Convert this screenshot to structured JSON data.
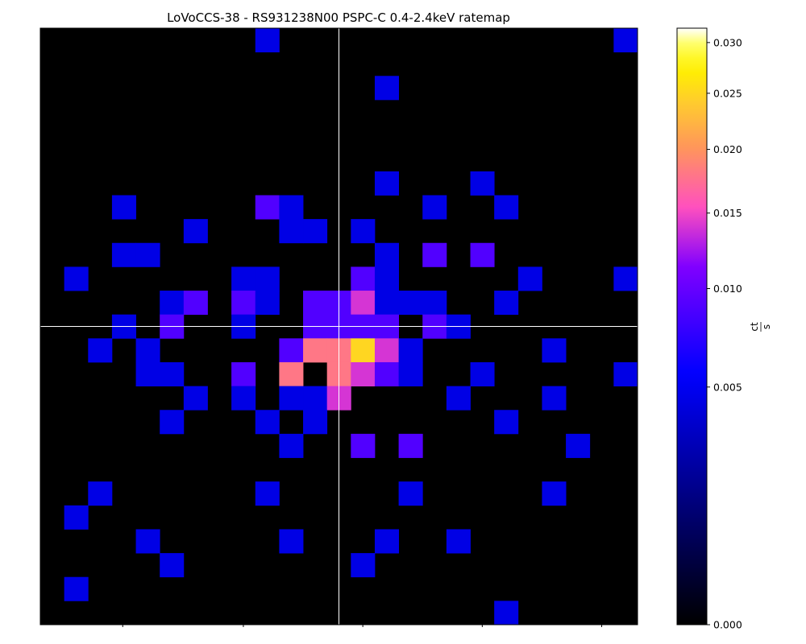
{
  "chart_data": {
    "type": "heatmap",
    "title": "LoVoCCS-38 - RS931238N00 PSPC-C 0.4-2.4keV ratemap",
    "colorbar_label": "ct/s",
    "colormap": "gnuplot2",
    "n_cols": 25,
    "n_rows": 25,
    "crosshair": {
      "col": 12.5,
      "row": 12.5,
      "color": "#ffffff"
    },
    "colorbar": {
      "scale": "power-law",
      "vmin": 0.0,
      "vmax": 0.0315,
      "ticks": [
        {
          "value": 0.0,
          "label": "0.000"
        },
        {
          "value": 0.005,
          "label": "0.005"
        },
        {
          "value": 0.01,
          "label": "0.010"
        },
        {
          "value": 0.015,
          "label": "0.015"
        },
        {
          "value": 0.02,
          "label": "0.020"
        },
        {
          "value": 0.025,
          "label": "0.025"
        },
        {
          "value": 0.03,
          "label": "0.030"
        }
      ]
    },
    "pixels": [
      {
        "col": 9,
        "row": 0,
        "value": 0.0045
      },
      {
        "col": 24,
        "row": 0,
        "value": 0.0045
      },
      {
        "col": 14,
        "row": 2,
        "value": 0.0045
      },
      {
        "col": 14,
        "row": 6,
        "value": 0.0045
      },
      {
        "col": 18,
        "row": 6,
        "value": 0.0045
      },
      {
        "col": 3,
        "row": 7,
        "value": 0.0045
      },
      {
        "col": 9,
        "row": 7,
        "value": 0.009
      },
      {
        "col": 10,
        "row": 7,
        "value": 0.0045
      },
      {
        "col": 16,
        "row": 7,
        "value": 0.0045
      },
      {
        "col": 19,
        "row": 7,
        "value": 0.0045
      },
      {
        "col": 6,
        "row": 8,
        "value": 0.0045
      },
      {
        "col": 10,
        "row": 8,
        "value": 0.0045
      },
      {
        "col": 11,
        "row": 8,
        "value": 0.0045
      },
      {
        "col": 13,
        "row": 8,
        "value": 0.0045
      },
      {
        "col": 3,
        "row": 9,
        "value": 0.0045
      },
      {
        "col": 4,
        "row": 9,
        "value": 0.0045
      },
      {
        "col": 14,
        "row": 9,
        "value": 0.0045
      },
      {
        "col": 16,
        "row": 9,
        "value": 0.009
      },
      {
        "col": 18,
        "row": 9,
        "value": 0.009
      },
      {
        "col": 1,
        "row": 10,
        "value": 0.0045
      },
      {
        "col": 8,
        "row": 10,
        "value": 0.0045
      },
      {
        "col": 9,
        "row": 10,
        "value": 0.0045
      },
      {
        "col": 13,
        "row": 10,
        "value": 0.009
      },
      {
        "col": 14,
        "row": 10,
        "value": 0.0045
      },
      {
        "col": 20,
        "row": 10,
        "value": 0.0045
      },
      {
        "col": 24,
        "row": 10,
        "value": 0.0045
      },
      {
        "col": 5,
        "row": 11,
        "value": 0.0045
      },
      {
        "col": 6,
        "row": 11,
        "value": 0.009
      },
      {
        "col": 8,
        "row": 11,
        "value": 0.009
      },
      {
        "col": 9,
        "row": 11,
        "value": 0.0045
      },
      {
        "col": 11,
        "row": 11,
        "value": 0.009
      },
      {
        "col": 12,
        "row": 11,
        "value": 0.009
      },
      {
        "col": 13,
        "row": 11,
        "value": 0.014
      },
      {
        "col": 14,
        "row": 11,
        "value": 0.0045
      },
      {
        "col": 15,
        "row": 11,
        "value": 0.0045
      },
      {
        "col": 16,
        "row": 11,
        "value": 0.0045
      },
      {
        "col": 19,
        "row": 11,
        "value": 0.0045
      },
      {
        "col": 3,
        "row": 12,
        "value": 0.0045
      },
      {
        "col": 5,
        "row": 12,
        "value": 0.009
      },
      {
        "col": 8,
        "row": 12,
        "value": 0.0045
      },
      {
        "col": 11,
        "row": 12,
        "value": 0.009
      },
      {
        "col": 12,
        "row": 12,
        "value": 0.009
      },
      {
        "col": 13,
        "row": 12,
        "value": 0.009
      },
      {
        "col": 14,
        "row": 12,
        "value": 0.009
      },
      {
        "col": 16,
        "row": 12,
        "value": 0.009
      },
      {
        "col": 17,
        "row": 12,
        "value": 0.0045
      },
      {
        "col": 2,
        "row": 13,
        "value": 0.0045
      },
      {
        "col": 4,
        "row": 13,
        "value": 0.0045
      },
      {
        "col": 10,
        "row": 13,
        "value": 0.009
      },
      {
        "col": 11,
        "row": 13,
        "value": 0.018
      },
      {
        "col": 12,
        "row": 13,
        "value": 0.018
      },
      {
        "col": 13,
        "row": 13,
        "value": 0.025
      },
      {
        "col": 14,
        "row": 13,
        "value": 0.014
      },
      {
        "col": 15,
        "row": 13,
        "value": 0.0045
      },
      {
        "col": 21,
        "row": 13,
        "value": 0.0045
      },
      {
        "col": 4,
        "row": 14,
        "value": 0.0045
      },
      {
        "col": 5,
        "row": 14,
        "value": 0.0045
      },
      {
        "col": 8,
        "row": 14,
        "value": 0.009
      },
      {
        "col": 10,
        "row": 14,
        "value": 0.018
      },
      {
        "col": 12,
        "row": 14,
        "value": 0.018
      },
      {
        "col": 13,
        "row": 14,
        "value": 0.014
      },
      {
        "col": 14,
        "row": 14,
        "value": 0.009
      },
      {
        "col": 15,
        "row": 14,
        "value": 0.0045
      },
      {
        "col": 18,
        "row": 14,
        "value": 0.0045
      },
      {
        "col": 24,
        "row": 14,
        "value": 0.0045
      },
      {
        "col": 6,
        "row": 15,
        "value": 0.0045
      },
      {
        "col": 8,
        "row": 15,
        "value": 0.0045
      },
      {
        "col": 10,
        "row": 15,
        "value": 0.0045
      },
      {
        "col": 11,
        "row": 15,
        "value": 0.0045
      },
      {
        "col": 12,
        "row": 15,
        "value": 0.014
      },
      {
        "col": 17,
        "row": 15,
        "value": 0.0045
      },
      {
        "col": 21,
        "row": 15,
        "value": 0.0045
      },
      {
        "col": 5,
        "row": 16,
        "value": 0.0045
      },
      {
        "col": 9,
        "row": 16,
        "value": 0.0045
      },
      {
        "col": 11,
        "row": 16,
        "value": 0.0045
      },
      {
        "col": 19,
        "row": 16,
        "value": 0.0045
      },
      {
        "col": 10,
        "row": 17,
        "value": 0.0045
      },
      {
        "col": 13,
        "row": 17,
        "value": 0.009
      },
      {
        "col": 15,
        "row": 17,
        "value": 0.009
      },
      {
        "col": 22,
        "row": 17,
        "value": 0.0045
      },
      {
        "col": 2,
        "row": 19,
        "value": 0.0045
      },
      {
        "col": 9,
        "row": 19,
        "value": 0.0045
      },
      {
        "col": 15,
        "row": 19,
        "value": 0.0045
      },
      {
        "col": 21,
        "row": 19,
        "value": 0.0045
      },
      {
        "col": 1,
        "row": 20,
        "value": 0.0045
      },
      {
        "col": 4,
        "row": 21,
        "value": 0.0045
      },
      {
        "col": 10,
        "row": 21,
        "value": 0.0045
      },
      {
        "col": 14,
        "row": 21,
        "value": 0.0045
      },
      {
        "col": 17,
        "row": 21,
        "value": 0.0045
      },
      {
        "col": 5,
        "row": 22,
        "value": 0.0045
      },
      {
        "col": 13,
        "row": 22,
        "value": 0.0045
      },
      {
        "col": 1,
        "row": 23,
        "value": 0.0045
      },
      {
        "col": 19,
        "row": 24,
        "value": 0.0045
      }
    ]
  }
}
